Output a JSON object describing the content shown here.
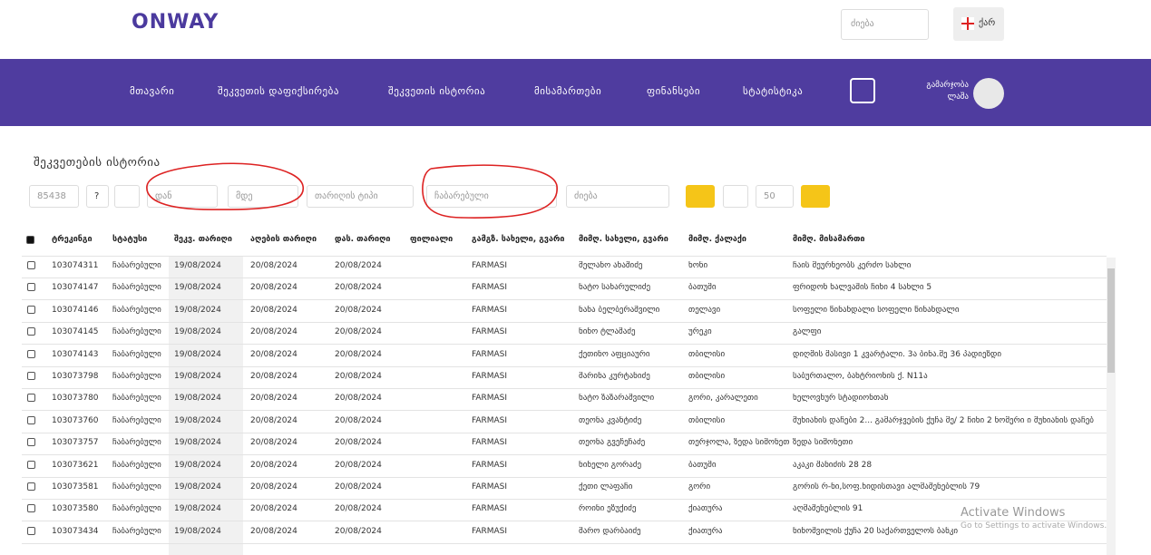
{
  "header": {
    "logo": "ONWAY",
    "search_placeholder": "ძიება",
    "language": "ქარ"
  },
  "nav": {
    "items": [
      "მთავარი",
      "შეკვეთის დაფიქსირება",
      "შეკვეთის ისტორია",
      "მისამართები",
      "ფინანსები",
      "სტატისტიკა"
    ],
    "greeting": "გამარჯობა",
    "user": "ლაშა"
  },
  "page": {
    "title": "შეკვეთების ისტორია"
  },
  "toolbar": {
    "number": "85438",
    "help": "?",
    "from": "დან",
    "to": "მდე",
    "date_type": "თარიღის ტიპი",
    "status": "ჩაბარებული",
    "search": "ძიება",
    "page_size": "50"
  },
  "table": {
    "columns": [
      "ტრეკინგი",
      "სტატუსი",
      "შეკვ. თარიღი",
      "აღების თარიღი",
      "დას. თარიღი",
      "ფილიალი",
      "გამგზ. სახელი, გვარი",
      "მიმღ. სახელი, გვარი",
      "მიმღ. ქალაქი",
      "მიმღ. მისამართი"
    ],
    "rows": [
      [
        "103074311",
        "ჩაბარებული",
        "19/08/2024",
        "20/08/2024",
        "20/08/2024",
        null,
        "FARMASI",
        "მელანო ახაშიძე",
        "ხონი",
        "ჩაის მეურნეობს კერძო სახლი"
      ],
      [
        "103074147",
        "ჩაბარებული",
        "19/08/2024",
        "20/08/2024",
        "20/08/2024",
        null,
        "FARMASI",
        "ნატო სახარულიძე",
        "ბათუმი",
        "ფრიდონ ხალვაშის ჩიხი 4 სახლი 5"
      ],
      [
        "103074146",
        "ჩაბარებული",
        "19/08/2024",
        "20/08/2024",
        "20/08/2024",
        null,
        "FARMASI",
        "ნანა ბელბერაშვილი",
        "თელავი",
        "სოფელი წინანდალი სოფელი წინანდალი"
      ],
      [
        "103074145",
        "ჩაბარებული",
        "19/08/2024",
        "20/08/2024",
        "20/08/2024",
        null,
        "FARMASI",
        "ნინო ტლაშაძე",
        "ურეკი",
        "გალფი"
      ],
      [
        "103074143",
        "ჩაბარებული",
        "19/08/2024",
        "20/08/2024",
        "20/08/2024",
        null,
        "FARMASI",
        "ქეთინო აფციაური",
        "თბილისი",
        "დიღმის მასივი 1 კვარტალი. 3ა ბინა.მე 36 პადიეზდი"
      ],
      [
        "103073798",
        "ჩაბარებული",
        "19/08/2024",
        "20/08/2024",
        "20/08/2024",
        null,
        "FARMASI",
        "მარინა კურტანიძე",
        "თბილისი",
        "საბურთალო, ბახტრიონის ქ. N11ა"
      ],
      [
        "103073780",
        "ჩაბარებული",
        "19/08/2024",
        "20/08/2024",
        "20/08/2024",
        null,
        "FARMASI",
        "ნატო ზაზარაშვილი",
        "გორი, კარალეთი",
        "ხელოვნურ სტადიონთან"
      ],
      [
        "103073760",
        "ჩაბარებული",
        "19/08/2024",
        "20/08/2024",
        "20/08/2024",
        null,
        "FARMASI",
        "თეონა კვანტიძე",
        "თბილისი",
        "მუხიანის დაჩები 2... გამარჯვების ქუჩა მე/ 2 ჩიხი 2 ნომერი ი მუხიანის დაჩებ"
      ],
      [
        "103073757",
        "ჩაბარებული",
        "19/08/2024",
        "20/08/2024",
        "20/08/2024",
        null,
        "FARMASI",
        "თეონა გვეჩეჩაძე",
        "თერჯოლა, ზედა სიმონეთი",
        "ზედა სიმონეთი"
      ],
      [
        "103073621",
        "ჩაბარებული",
        "19/08/2024",
        "20/08/2024",
        "20/08/2024",
        null,
        "FARMASI",
        "ნინელი გორაძე",
        "ბათუმი",
        "აკაკი შანიძის 28 28"
      ],
      [
        "103073581",
        "ჩაბარებული",
        "19/08/2024",
        "20/08/2024",
        "20/08/2024",
        null,
        "FARMASI",
        "ქეთი ლაფაჩი",
        "გორი",
        "გორის რ-ნი,სოფ.ხიდისთავი ალმაშენებლის 79"
      ],
      [
        "103073580",
        "ჩაბარებული",
        "19/08/2024",
        "20/08/2024",
        "20/08/2024",
        null,
        "FARMASI",
        "როინი ეზუქიძე",
        "ქიათურა",
        "აღმაშენებლის 91"
      ],
      [
        "103073434",
        "ჩაბარებული",
        "19/08/2024",
        "20/08/2024",
        "20/08/2024",
        null,
        "FARMASI",
        "მარო დარბაიძე",
        "ქიათურა",
        "ნინოშვილის ქუჩა 20 საქართველოს ბანკი"
      ]
    ]
  },
  "watermark": {
    "title": "Activate Windows",
    "subtitle": "Go to Settings to activate Windows."
  }
}
